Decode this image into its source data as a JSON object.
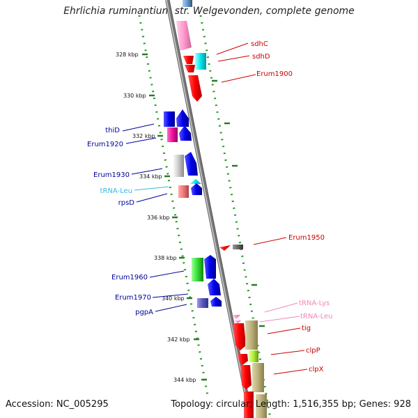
{
  "title": "Ehrlichia ruminantium str. Welgevonden, complete genome",
  "footer": {
    "accession": "Accession: NC_005295",
    "summary": "Topology: circular; Length: 1,516,355 bp; Genes: 928"
  },
  "scale_labels": [
    "328 kbp",
    "330 kbp",
    "332 kbp",
    "334 kbp",
    "336 kbp",
    "338 kbp",
    "340 kbp",
    "342 kbp",
    "344 kbp"
  ],
  "genes": [
    {
      "name": "sdhC",
      "color": "#cc0000"
    },
    {
      "name": "sdhD",
      "color": "#cc0000"
    },
    {
      "name": "Erum1900",
      "color": "#cc0000"
    },
    {
      "name": "thiD",
      "color": "#000099"
    },
    {
      "name": "Erum1920",
      "color": "#000099"
    },
    {
      "name": "Erum1930",
      "color": "#000099"
    },
    {
      "name": "tRNA-Leu",
      "color": "#33bbdd"
    },
    {
      "name": "rpsD",
      "color": "#000099"
    },
    {
      "name": "Erum1950",
      "color": "#cc0000"
    },
    {
      "name": "Erum1960",
      "color": "#000099"
    },
    {
      "name": "Erum1970",
      "color": "#000099"
    },
    {
      "name": "pgpA",
      "color": "#000099"
    },
    {
      "name": "tRNA-Lys",
      "color": "#ee88bb"
    },
    {
      "name": "tRNA-Leu",
      "color": "#ee88bb"
    },
    {
      "name": "tig",
      "color": "#cc0000"
    },
    {
      "name": "clpP",
      "color": "#cc0000"
    },
    {
      "name": "clpX",
      "color": "#cc0000"
    }
  ]
}
